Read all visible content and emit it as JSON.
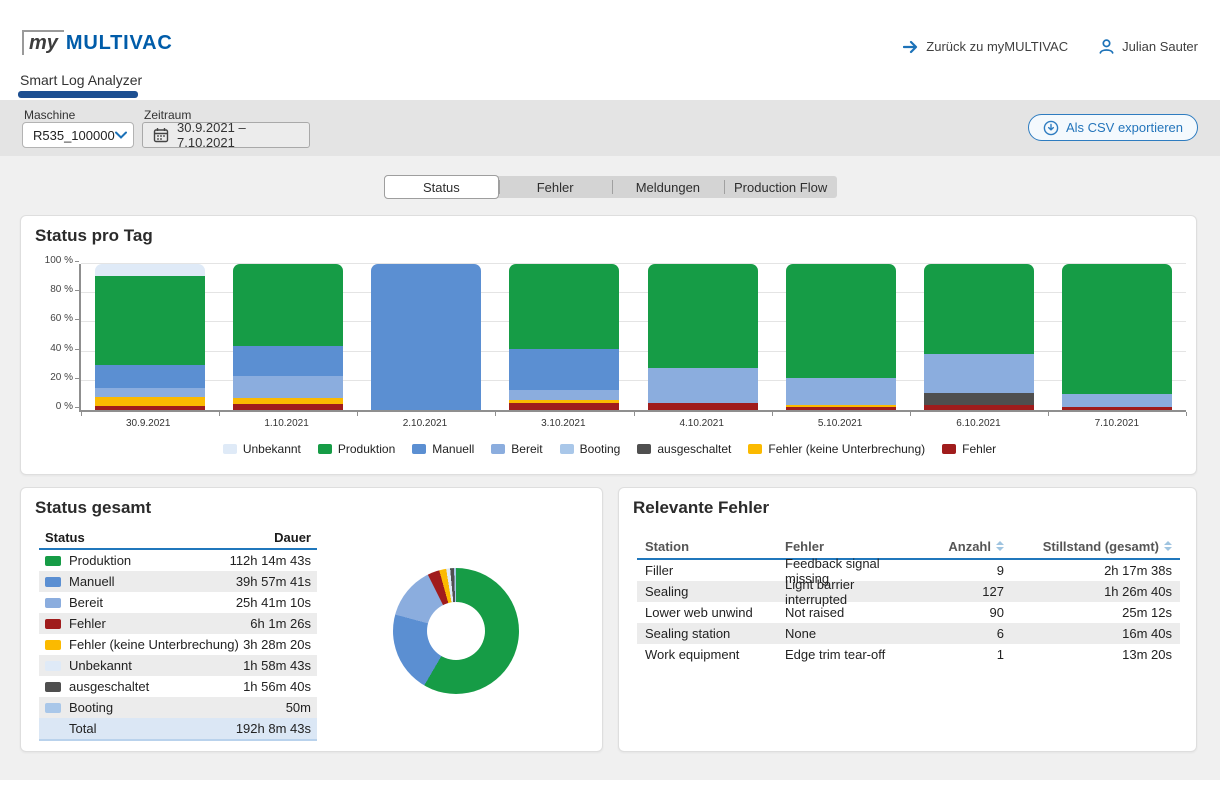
{
  "header": {
    "logo_my": "my",
    "logo_brand": "MULTIVAC",
    "app_tab": "Smart Log Analyzer",
    "back_link": "Zurück zu myMULTIVAC",
    "user_name": "Julian Sauter"
  },
  "toolbar": {
    "machine_label": "Maschine",
    "machine_value": "R535_100000",
    "period_label": "Zeitraum",
    "period_value": "30.9.2021 – 7.10.2021",
    "export_label": "Als CSV exportieren"
  },
  "tabs": {
    "items": [
      {
        "label": "Status",
        "active": true
      },
      {
        "label": "Fehler",
        "active": false
      },
      {
        "label": "Meldungen",
        "active": false
      },
      {
        "label": "Production Flow",
        "active": false
      }
    ]
  },
  "colors": {
    "accent": "#1c72b8",
    "logo_blue": "#005ca9",
    "produktion": "#169c46",
    "manuell": "#5b8fd2",
    "bereit": "#8badde",
    "booting": "#a9c7e9",
    "unbekannt": "#dfeaf7",
    "ausgeschaltet": "#4f4f4f",
    "fku": "#fbba00",
    "fehler": "#a01c1c"
  },
  "chart_data": [
    {
      "type": "bar",
      "stacked_percent": true,
      "title": "Status pro Tag",
      "categories": [
        "30.9.2021",
        "1.10.2021",
        "2.10.2021",
        "3.10.2021",
        "4.10.2021",
        "5.10.2021",
        "6.10.2021",
        "7.10.2021"
      ],
      "series": [
        {
          "name": "Fehler",
          "key": "fehler",
          "values": [
            2.5,
            4,
            0,
            4.5,
            4.5,
            2,
            3.5,
            2
          ]
        },
        {
          "name": "Fehler (keine Unterbrechung)",
          "key": "fku",
          "values": [
            6.5,
            4,
            0,
            2.5,
            0,
            1.5,
            0,
            0
          ]
        },
        {
          "name": "ausgeschaltet",
          "key": "ausgeschaltet",
          "values": [
            0,
            0,
            0,
            0,
            0,
            0,
            8,
            0
          ]
        },
        {
          "name": "Booting",
          "key": "booting",
          "values": [
            0,
            0,
            0,
            0,
            0,
            0,
            0,
            0
          ]
        },
        {
          "name": "Bereit",
          "key": "bereit",
          "values": [
            6,
            15,
            0,
            6.5,
            24,
            18.5,
            27,
            9
          ]
        },
        {
          "name": "Manuell",
          "key": "manuell",
          "values": [
            16,
            21,
            100,
            28.5,
            0,
            0,
            0,
            0
          ]
        },
        {
          "name": "Produktion",
          "key": "produktion",
          "values": [
            61,
            56,
            0,
            58,
            71.5,
            78,
            61.5,
            89
          ]
        },
        {
          "name": "Unbekannt",
          "key": "unbekannt",
          "values": [
            8,
            0,
            0,
            0,
            0,
            0,
            0,
            0
          ]
        }
      ],
      "ylabels": [
        "0 %",
        "20 %",
        "40 %",
        "60 %",
        "80 %",
        "100 %"
      ],
      "ylim": [
        0,
        100
      ],
      "grid": true,
      "legend_position": "bottom",
      "legend": [
        {
          "key": "unbekannt",
          "label": "Unbekannt"
        },
        {
          "key": "produktion",
          "label": "Produktion"
        },
        {
          "key": "manuell",
          "label": "Manuell"
        },
        {
          "key": "bereit",
          "label": "Bereit"
        },
        {
          "key": "booting",
          "label": "Booting"
        },
        {
          "key": "ausgeschaltet",
          "label": "ausgeschaltet"
        },
        {
          "key": "fku",
          "label": "Fehler (keine Unterbrechung)"
        },
        {
          "key": "fehler",
          "label": "Fehler"
        }
      ]
    },
    {
      "type": "pie",
      "donut": true,
      "title": "Status gesamt",
      "slices": [
        {
          "key": "produktion",
          "label": "Produktion",
          "percent": 58.4
        },
        {
          "key": "manuell",
          "label": "Manuell",
          "percent": 20.8
        },
        {
          "key": "bereit",
          "label": "Bereit",
          "percent": 13.4
        },
        {
          "key": "fehler",
          "label": "Fehler",
          "percent": 3.1
        },
        {
          "key": "fku",
          "label": "Fehler (keine Unterbrechung)",
          "percent": 1.8
        },
        {
          "key": "unbekannt",
          "label": "Unbekannt",
          "percent": 1.0
        },
        {
          "key": "ausgeschaltet",
          "label": "ausgeschaltet",
          "percent": 1.0
        },
        {
          "key": "booting",
          "label": "Booting",
          "percent": 0.4
        }
      ]
    }
  ],
  "status_day_card": {
    "title": "Status pro Tag"
  },
  "status_total_card": {
    "title": "Status gesamt",
    "col_status": "Status",
    "col_dauer": "Dauer",
    "rows": [
      {
        "key": "produktion",
        "label": "Produktion",
        "duration": "112h 14m 43s"
      },
      {
        "key": "manuell",
        "label": "Manuell",
        "duration": "39h 57m 41s"
      },
      {
        "key": "bereit",
        "label": "Bereit",
        "duration": "25h 41m 10s"
      },
      {
        "key": "fehler",
        "label": "Fehler",
        "duration": "6h 1m 26s"
      },
      {
        "key": "fku",
        "label": "Fehler (keine Unterbrechung)",
        "duration": "3h 28m 20s"
      },
      {
        "key": "unbekannt",
        "label": "Unbekannt",
        "duration": "1h 58m 43s"
      },
      {
        "key": "ausgeschaltet",
        "label": "ausgeschaltet",
        "duration": "1h 56m 40s"
      },
      {
        "key": "booting",
        "label": "Booting",
        "duration": "50m"
      }
    ],
    "total": {
      "label": "Total",
      "duration": "192h 8m 43s"
    }
  },
  "errors_card": {
    "title": "Relevante Fehler",
    "columns": [
      {
        "label": "Station",
        "sortable": false
      },
      {
        "label": "Fehler",
        "sortable": false
      },
      {
        "label": "Anzahl",
        "sortable": true
      },
      {
        "label": "Stillstand (gesamt)",
        "sortable": true
      }
    ],
    "rows": [
      [
        "Filler",
        "Feedback signal missing",
        "9",
        "2h 17m 38s"
      ],
      [
        "Sealing",
        "Light barrier interrupted",
        "127",
        "1h 26m 40s"
      ],
      [
        "Lower web unwind",
        "Not raised",
        "90",
        "25m 12s"
      ],
      [
        "Sealing station",
        "None",
        "6",
        "16m 40s"
      ],
      [
        "Work equipment",
        "Edge trim tear-off",
        "1",
        "13m 20s"
      ]
    ]
  }
}
